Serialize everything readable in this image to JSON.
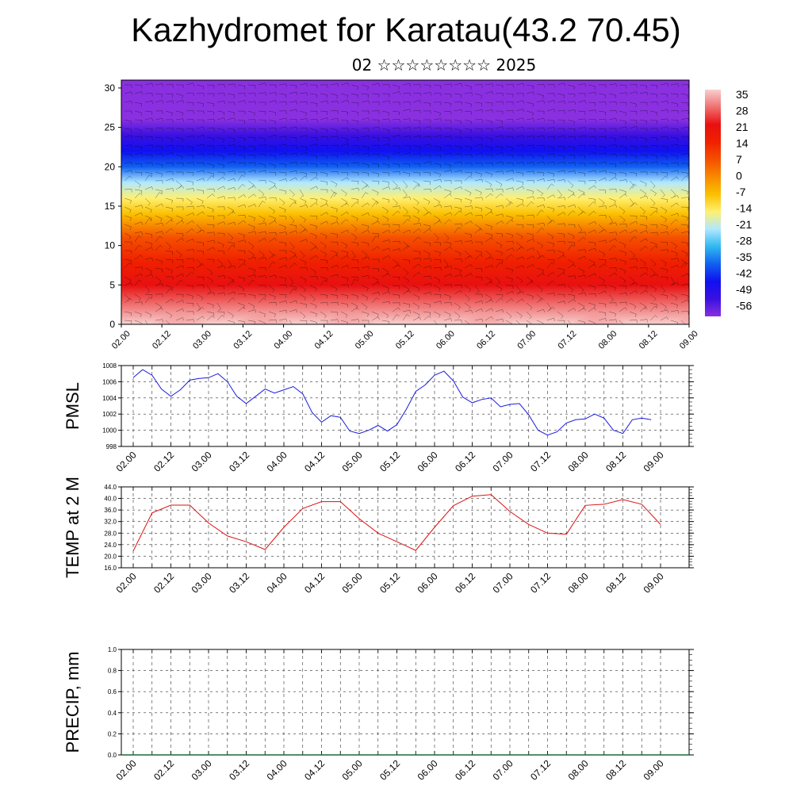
{
  "title": "Kazhydromet for Karatau(43.2 70.45)",
  "subtitle": "02 ☆☆☆☆☆☆☆☆ 2025",
  "x_ticks": [
    "02.00",
    "02.12",
    "03.00",
    "03.12",
    "04.00",
    "04.12",
    "05.00",
    "05.12",
    "06.00",
    "06.12",
    "07.00",
    "07.12",
    "08.00",
    "08.12",
    "09.00"
  ],
  "chart_data": [
    {
      "type": "heatmap",
      "ylim": [
        0,
        31
      ],
      "y_ticks": [
        "0",
        "5",
        "10",
        "15",
        "20",
        "25",
        "30"
      ],
      "colorbar_labels": [
        "35",
        "28",
        "21",
        "14",
        "7",
        "0",
        "-7",
        "-14",
        "-21",
        "-28",
        "-35",
        "-42",
        "-49",
        "-56"
      ],
      "colorbar_colors": [
        "#f7d0d0",
        "#f07070",
        "#e81010",
        "#f02000",
        "#f55000",
        "#f88a00",
        "#fbc000",
        "#fff070",
        "#b0e8ff",
        "#30b8f0",
        "#1060f0",
        "#1010f0",
        "#3a10e0",
        "#8a30e0"
      ],
      "profile": [
        {
          "height": 0,
          "value": 32
        },
        {
          "height": 5,
          "value": 22
        },
        {
          "height": 8,
          "value": 12
        },
        {
          "height": 11,
          "value": 4
        },
        {
          "height": 14,
          "value": -6
        },
        {
          "height": 16,
          "value": -14
        },
        {
          "height": 18,
          "value": -24
        },
        {
          "height": 20,
          "value": -34
        },
        {
          "height": 22,
          "value": -42
        },
        {
          "height": 24,
          "value": -52
        },
        {
          "height": 26,
          "value": -58
        },
        {
          "height": 31,
          "value": -58
        }
      ]
    },
    {
      "type": "line",
      "ylabel": "PMSL",
      "ylim": [
        998,
        1008
      ],
      "y_ticks": [
        "998",
        "1000",
        "1002",
        "1004",
        "1006",
        "1008"
      ],
      "color": "#1a1ae0",
      "x": [
        0,
        3,
        6,
        9,
        12,
        15,
        18,
        21,
        24,
        27,
        30,
        33,
        36,
        39,
        42,
        45,
        48,
        51,
        54,
        57,
        60,
        63,
        66,
        69,
        72,
        75,
        78,
        81,
        84,
        87,
        90,
        93,
        96,
        99,
        102,
        105,
        108,
        111,
        114,
        117,
        120,
        123,
        126,
        129,
        132,
        135,
        138,
        141,
        144,
        147,
        150,
        153,
        156,
        159,
        162,
        165
      ],
      "values": [
        1006.5,
        1007.5,
        1006.8,
        1005.1,
        1004.2,
        1005.0,
        1006.2,
        1006.4,
        1006.5,
        1007.0,
        1006.0,
        1004.2,
        1003.3,
        1004.2,
        1005.1,
        1004.6,
        1005.0,
        1005.4,
        1004.5,
        1002.2,
        1001.0,
        1001.8,
        1001.6,
        999.9,
        999.6,
        1000.0,
        1000.6,
        999.9,
        1000.7,
        1002.6,
        1004.8,
        1005.6,
        1006.8,
        1007.3,
        1006.1,
        1004.1,
        1003.4,
        1003.8,
        1004.0,
        1002.9,
        1003.2,
        1003.3,
        1001.9,
        1000.0,
        999.4,
        999.8,
        1000.9,
        1001.3,
        1001.4,
        1002.0,
        1001.5,
        1000.0,
        999.6,
        1001.3,
        1001.5,
        1001.3
      ]
    },
    {
      "type": "line",
      "ylabel": "TEMP at 2 M",
      "ylim": [
        16,
        44
      ],
      "y_ticks": [
        "16.0",
        "20.0",
        "24.0",
        "28.0",
        "32.0",
        "36.0",
        "40.0",
        "44.0"
      ],
      "color": "#dd1111",
      "x": [
        0,
        6,
        12,
        18,
        24,
        30,
        36,
        42,
        48,
        54,
        60,
        66,
        72,
        78,
        84,
        90,
        96,
        102,
        108,
        114,
        120,
        126,
        132,
        138,
        144,
        150,
        156,
        162,
        168
      ],
      "values": [
        21.8,
        35.0,
        37.7,
        37.7,
        31.5,
        27.0,
        25.0,
        22.3,
        30.0,
        36.5,
        38.9,
        38.9,
        33.0,
        28.0,
        25.0,
        22.0,
        30.0,
        37.5,
        40.8,
        41.3,
        35.5,
        31.0,
        28.0,
        27.6,
        37.6,
        38.0,
        39.6,
        38.0,
        31.0
      ]
    },
    {
      "type": "bar",
      "ylabel": "PRECIP, mm",
      "ylim": [
        0,
        1
      ],
      "y_ticks": [
        "0.0",
        "0.2",
        "0.4",
        "0.6",
        "0.8",
        "1.0"
      ],
      "values": []
    }
  ]
}
